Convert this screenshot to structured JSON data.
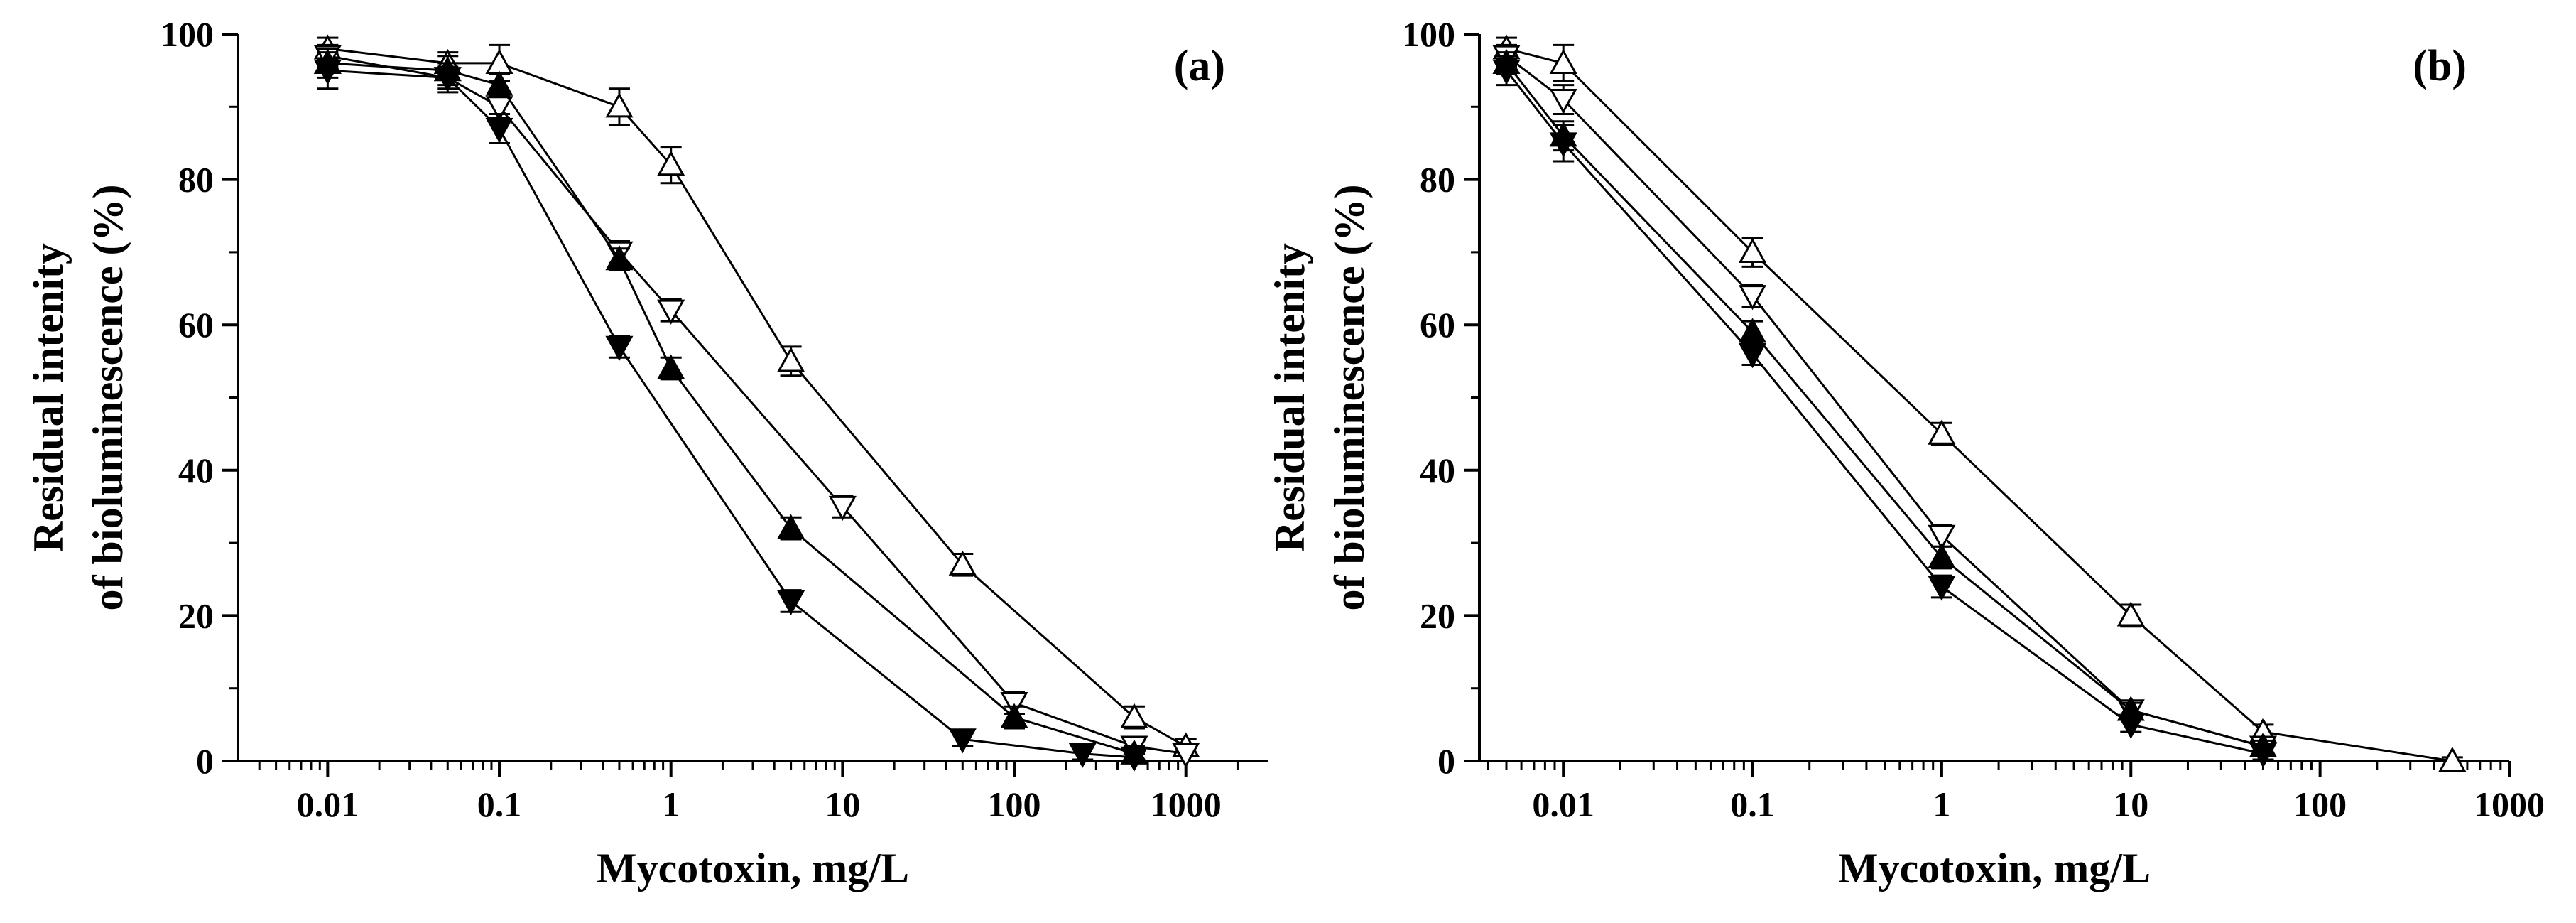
{
  "chart_data": [
    {
      "type": "line",
      "panel_label": "(a)",
      "xlabel": "Mycotoxin, mg/L",
      "ylabel_line1": "Residual intenity",
      "ylabel_line2": "of bioluminescence (%)",
      "xscale": "log",
      "xlim": [
        0.003,
        3000
      ],
      "ylim": [
        0,
        100
      ],
      "xticks": [
        {
          "value": 0.01,
          "label": "0.01"
        },
        {
          "value": 0.1,
          "label": "0.1"
        },
        {
          "value": 1,
          "label": "1"
        },
        {
          "value": 10,
          "label": "10"
        },
        {
          "value": 100,
          "label": "100"
        },
        {
          "value": 1000,
          "label": "1000"
        }
      ],
      "yticks": [
        {
          "value": 0,
          "label": "0"
        },
        {
          "value": 20,
          "label": "20"
        },
        {
          "value": 40,
          "label": "40"
        },
        {
          "value": 60,
          "label": "60"
        },
        {
          "value": 80,
          "label": "80"
        },
        {
          "value": 100,
          "label": "100"
        }
      ],
      "series": [
        {
          "marker": "triangle-up-open",
          "x": [
            0.01,
            0.05,
            0.1,
            0.5,
            1,
            5,
            50,
            500,
            1000
          ],
          "y": [
            98,
            96,
            96,
            90,
            82,
            55,
            27,
            6,
            2
          ],
          "err": [
            1.5,
            1.5,
            2.5,
            2.5,
            2.5,
            2,
            1.5,
            1.5,
            1
          ]
        },
        {
          "marker": "triangle-down-open",
          "x": [
            0.01,
            0.05,
            0.1,
            0.5,
            1,
            10,
            100,
            500,
            1000
          ],
          "y": [
            97,
            94,
            90,
            70,
            62,
            35,
            8,
            2,
            1
          ],
          "err": [
            1.5,
            1.5,
            1.5,
            1.5,
            1.5,
            1.5,
            1.5,
            1,
            1
          ]
        },
        {
          "marker": "triangle-up-filled",
          "x": [
            0.01,
            0.05,
            0.1,
            0.5,
            1,
            5,
            100,
            500
          ],
          "y": [
            96,
            95,
            93,
            69,
            54,
            32,
            6,
            1
          ],
          "err": [
            2,
            2,
            1.5,
            1.5,
            1.5,
            1.5,
            1.5,
            1
          ]
        },
        {
          "marker": "triangle-down-filled",
          "x": [
            0.01,
            0.05,
            0.1,
            0.5,
            5,
            50,
            250,
            500
          ],
          "y": [
            95,
            94,
            87,
            57,
            22,
            3,
            1,
            0.5
          ],
          "err": [
            2.5,
            2,
            2,
            1.5,
            1.5,
            1,
            0.8,
            0.5
          ]
        }
      ]
    },
    {
      "type": "line",
      "panel_label": "(b)",
      "xlabel": "Mycotoxin, mg/L",
      "ylabel_line1": "Residual intenity",
      "ylabel_line2": "of bioluminescence (%)",
      "xscale": "log",
      "xlim": [
        0.0036,
        1000
      ],
      "ylim": [
        0,
        100
      ],
      "xticks": [
        {
          "value": 0.01,
          "label": "0.01"
        },
        {
          "value": 0.1,
          "label": "0.1"
        },
        {
          "value": 1,
          "label": "1"
        },
        {
          "value": 10,
          "label": "10"
        },
        {
          "value": 100,
          "label": "100"
        },
        {
          "value": 1000,
          "label": "1000"
        }
      ],
      "yticks": [
        {
          "value": 0,
          "label": "0"
        },
        {
          "value": 20,
          "label": "20"
        },
        {
          "value": 40,
          "label": "40"
        },
        {
          "value": 60,
          "label": "60"
        },
        {
          "value": 80,
          "label": "80"
        },
        {
          "value": 100,
          "label": "100"
        }
      ],
      "series": [
        {
          "marker": "triangle-up-open",
          "x": [
            0.005,
            0.01,
            0.1,
            1,
            10,
            50,
            500
          ],
          "y": [
            98,
            96,
            70,
            45,
            20,
            4,
            0
          ],
          "err": [
            1.5,
            2.5,
            2,
            1.5,
            1.5,
            1,
            0.5
          ]
        },
        {
          "marker": "triangle-down-open",
          "x": [
            0.005,
            0.01,
            0.1,
            1,
            10,
            50
          ],
          "y": [
            97,
            91,
            64,
            31,
            7,
            2
          ],
          "err": [
            1.5,
            2,
            1.5,
            1.5,
            1,
            1
          ]
        },
        {
          "marker": "triangle-up-filled",
          "x": [
            0.005,
            0.01,
            0.1,
            1,
            10,
            50
          ],
          "y": [
            96,
            86,
            59,
            28,
            7,
            2
          ],
          "err": [
            1.5,
            2,
            1.5,
            1.5,
            1,
            0.8
          ]
        },
        {
          "marker": "triangle-down-filled",
          "x": [
            0.005,
            0.01,
            0.1,
            1,
            10,
            50
          ],
          "y": [
            95,
            85,
            56,
            24,
            5,
            1
          ],
          "err": [
            2,
            2.5,
            1.5,
            1.5,
            1,
            0.8
          ]
        }
      ]
    }
  ]
}
